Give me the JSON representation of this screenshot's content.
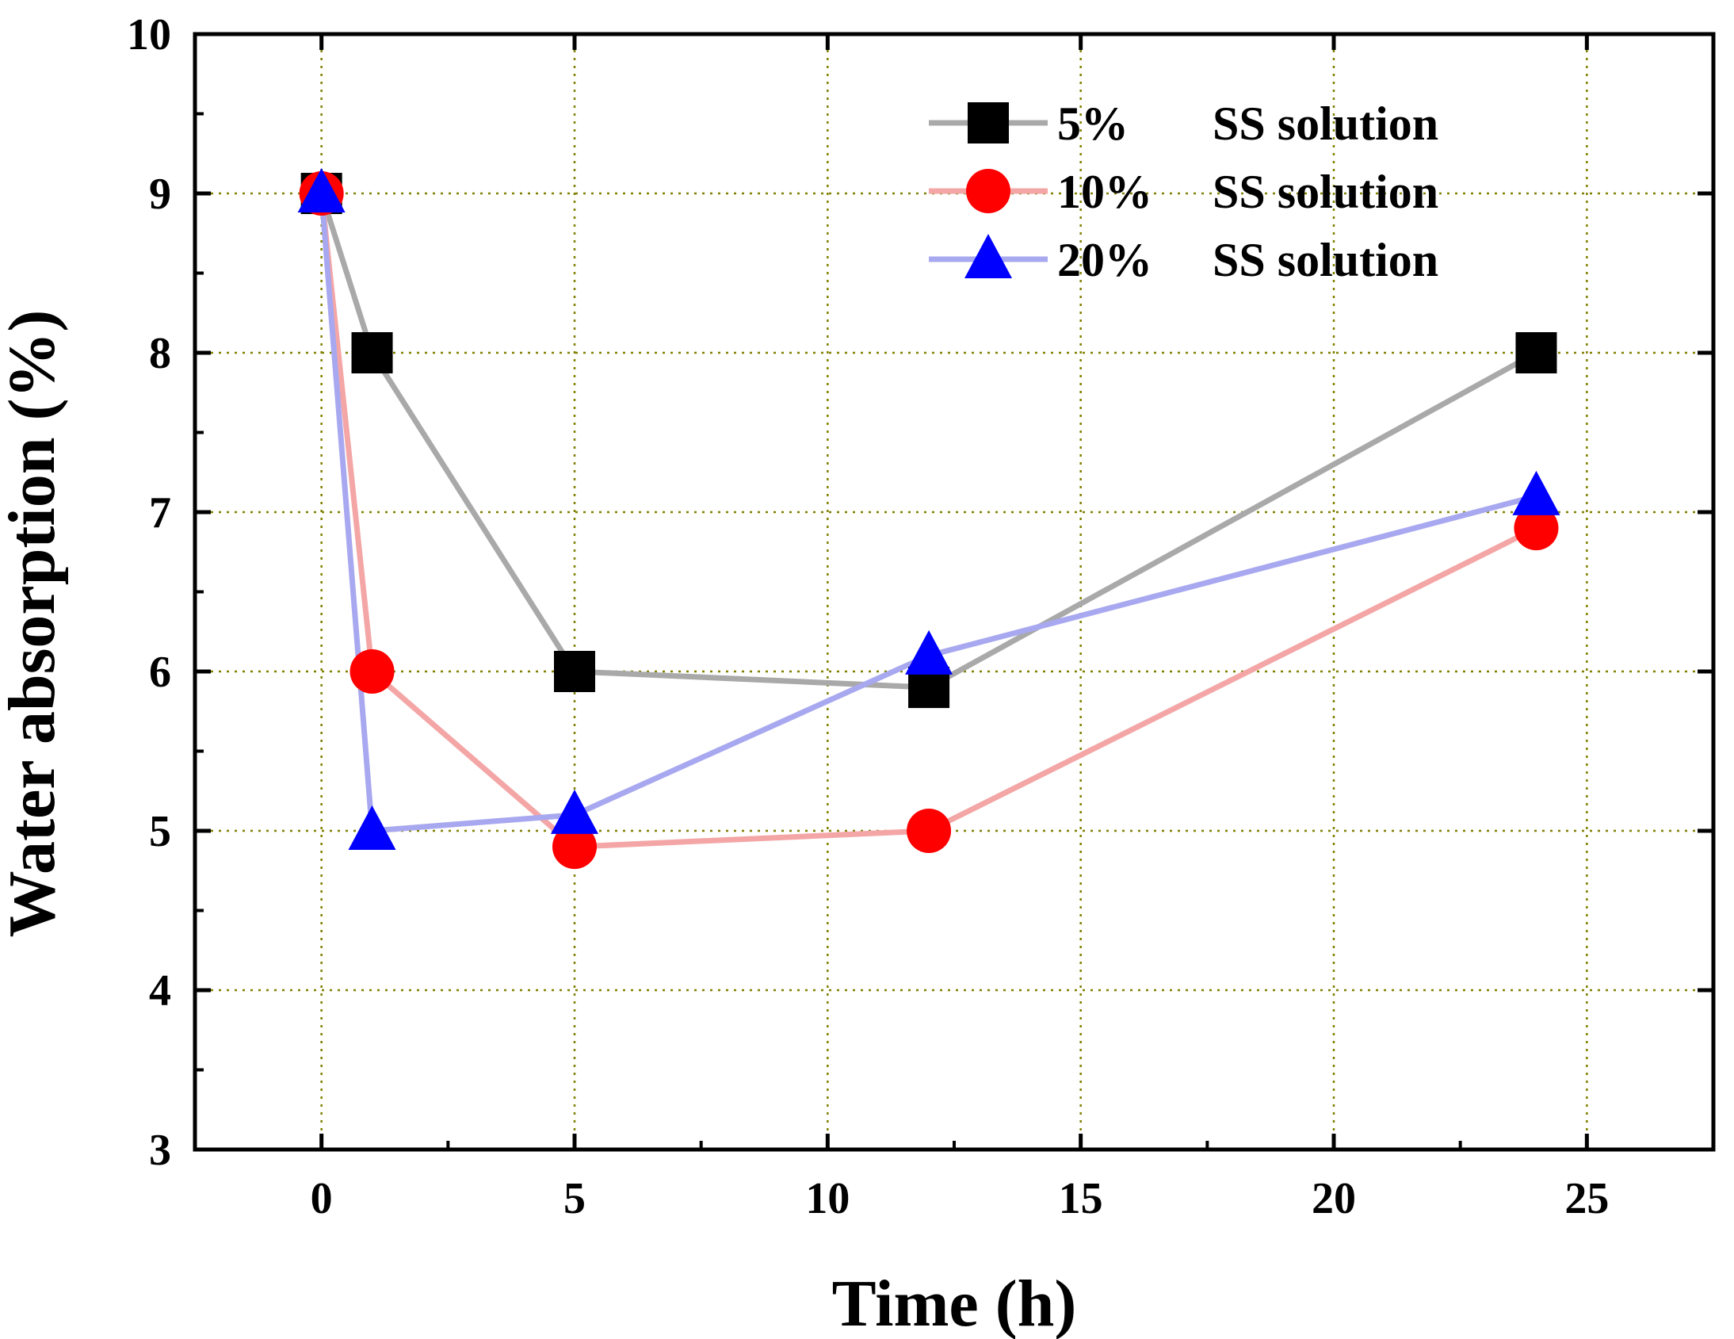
{
  "chart_data": {
    "type": "line",
    "xlabel": "Time (h)",
    "ylabel": "Water absorption (%)",
    "xlim": [
      -2.5,
      27.5
    ],
    "ylim": [
      3,
      10
    ],
    "xticks": [
      0,
      5,
      10,
      15,
      20,
      25
    ],
    "yticks": [
      3,
      4,
      5,
      6,
      7,
      8,
      9,
      10
    ],
    "xtick_labels": [
      "0",
      "5",
      "10",
      "15",
      "20",
      "25"
    ],
    "ytick_labels": [
      "3",
      "4",
      "5",
      "6",
      "7",
      "8",
      "9",
      "10"
    ],
    "grid": true,
    "legend_position": "top-right",
    "series": [
      {
        "name_pct": "5%",
        "name_text": "SS solution",
        "marker": "square",
        "line_color": "#a9a9a9",
        "marker_color": "#000000",
        "x": [
          0,
          1,
          5,
          12,
          24
        ],
        "y": [
          9.0,
          8.0,
          6.0,
          5.9,
          8.0
        ]
      },
      {
        "name_pct": "10%",
        "name_text": "SS solution",
        "marker": "circle",
        "line_color": "#f4a6a6",
        "marker_color": "#ff0000",
        "x": [
          0,
          1,
          5,
          12,
          24
        ],
        "y": [
          9.0,
          6.0,
          4.9,
          5.0,
          6.9
        ]
      },
      {
        "name_pct": "20%",
        "name_text": "SS solution",
        "marker": "triangle",
        "line_color": "#a8a8f0",
        "marker_color": "#0000ff",
        "x": [
          0,
          1,
          5,
          12,
          24
        ],
        "y": [
          9.0,
          5.0,
          5.1,
          6.1,
          7.1
        ]
      }
    ]
  }
}
